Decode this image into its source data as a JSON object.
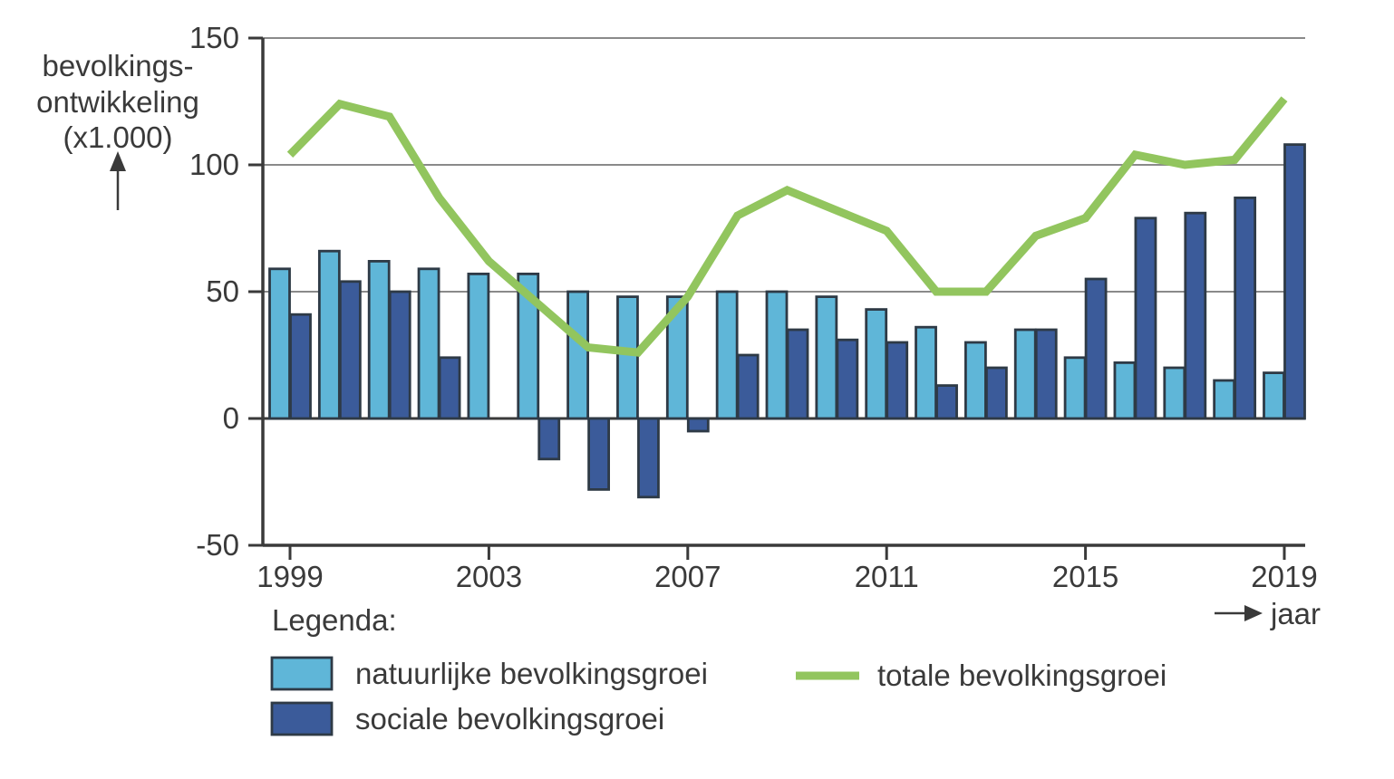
{
  "y_axis": {
    "title_lines": [
      "bevolkings-",
      "ontwikkeling",
      "(x1.000)"
    ],
    "tick_labels": [
      "150",
      "100",
      "50",
      "0",
      "-50"
    ]
  },
  "x_axis": {
    "title": "jaar",
    "tick_labels": [
      "1999",
      "2003",
      "2007",
      "2011",
      "2015",
      "2019"
    ]
  },
  "legend": {
    "heading": "Legenda:",
    "items": [
      {
        "label": "natuurlijke bevolkingsgroei",
        "type": "bar"
      },
      {
        "label": "sociale bevolkingsgroei",
        "type": "bar"
      },
      {
        "label": "totale bevolkingsgroei",
        "type": "line"
      }
    ]
  },
  "colors": {
    "natural_bar": "#5fb6d8",
    "social_bar": "#3b5b9a",
    "total_line": "#92c55e",
    "bar_border": "#2e3a46",
    "grid": "#8a8a8a",
    "axis": "#3a3a3a"
  },
  "chart_data": {
    "type": "bar+line",
    "title": "",
    "ylabel": "bevolkings-ontwikkeling (x1.000)",
    "xlabel": "jaar",
    "grid": true,
    "legend_position": "bottom",
    "ylim": [
      -50,
      150
    ],
    "y_ticks": [
      150,
      100,
      50,
      0,
      -50
    ],
    "x": [
      1999,
      2000,
      2001,
      2002,
      2003,
      2004,
      2005,
      2006,
      2007,
      2008,
      2009,
      2010,
      2011,
      2012,
      2013,
      2014,
      2015,
      2016,
      2017,
      2018,
      2019
    ],
    "x_tick_years": [
      1999,
      2003,
      2007,
      2011,
      2015,
      2019
    ],
    "series": [
      {
        "name": "natuurlijke bevolkingsgroei",
        "type": "bar",
        "color": "#5fb6d8",
        "values": [
          59,
          66,
          62,
          59,
          57,
          57,
          50,
          48,
          48,
          50,
          50,
          48,
          43,
          36,
          30,
          35,
          24,
          22,
          20,
          15,
          18
        ]
      },
      {
        "name": "sociale bevolkingsgroei",
        "type": "bar",
        "color": "#3b5b9a",
        "values": [
          41,
          54,
          50,
          24,
          0,
          -16,
          -28,
          -31,
          -5,
          25,
          35,
          31,
          30,
          13,
          20,
          35,
          55,
          79,
          81,
          87,
          108
        ]
      },
      {
        "name": "totale bevolkingsgroei",
        "type": "line",
        "color": "#92c55e",
        "values": [
          104,
          124,
          119,
          87,
          62,
          45,
          28,
          26,
          48,
          80,
          90,
          82,
          74,
          50,
          50,
          72,
          79,
          104,
          100,
          102,
          126
        ]
      }
    ]
  }
}
